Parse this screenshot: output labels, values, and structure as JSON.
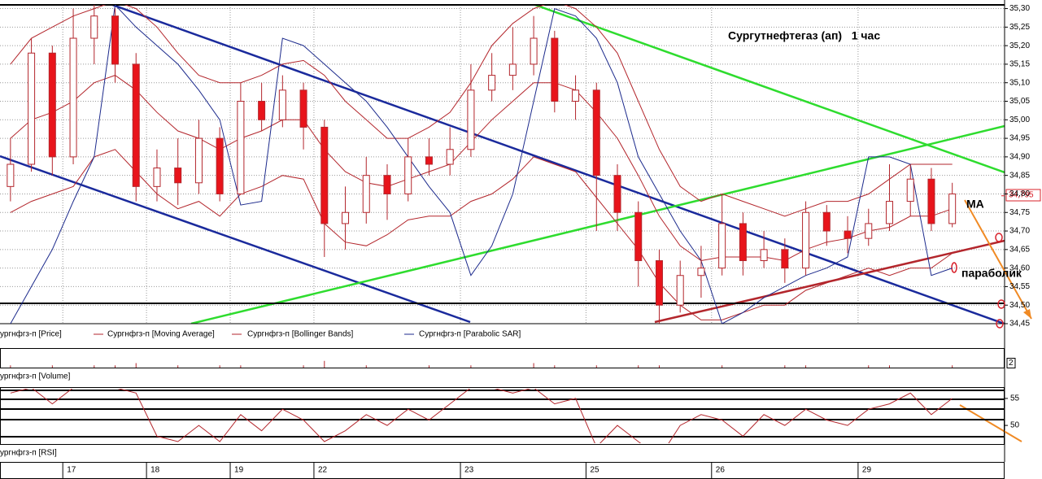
{
  "chart_data": [
    {
      "type": "candlestick",
      "title": "Сургутнефтегаз (ап)   1 час",
      "price_name": "ургнфгз-п [Price]",
      "annotations": [
        "MA",
        "параболик"
      ],
      "last_price": {
        "value": 34.795,
        "label": "34,795"
      },
      "categories": [
        null,
        null,
        null,
        "17",
        null,
        null,
        null,
        "18",
        null,
        null,
        null,
        "19",
        null,
        null,
        null,
        "22",
        null,
        null,
        null,
        null,
        null,
        null,
        "23",
        null,
        null,
        null,
        null,
        null,
        "25",
        null,
        null,
        null,
        null,
        null,
        "26",
        null,
        null,
        null,
        null,
        null,
        null,
        "29",
        null,
        null,
        null,
        null
      ],
      "open": [
        34.82,
        34.88,
        35.18,
        34.9,
        35.22,
        35.28,
        35.15,
        34.82,
        34.87,
        34.83,
        34.95,
        34.8,
        35.05,
        35.0,
        35.08,
        34.98,
        34.72,
        34.75,
        34.85,
        34.8,
        34.9,
        34.88,
        34.92,
        35.08,
        35.12,
        35.15,
        35.22,
        35.05,
        35.08,
        34.85,
        34.75,
        34.62,
        34.5,
        34.58,
        34.6,
        34.72,
        34.62,
        34.65,
        34.6,
        34.75,
        34.7,
        34.68,
        34.72,
        34.78,
        34.84,
        34.72
      ],
      "high": [
        34.95,
        35.22,
        35.2,
        35.3,
        35.31,
        35.3,
        35.18,
        34.92,
        34.95,
        35.0,
        34.98,
        35.1,
        35.1,
        35.12,
        35.1,
        35.0,
        34.82,
        34.9,
        34.88,
        34.95,
        34.95,
        34.98,
        35.15,
        35.18,
        35.25,
        35.28,
        35.24,
        35.12,
        35.1,
        34.88,
        34.78,
        34.65,
        34.62,
        34.66,
        34.8,
        34.75,
        34.7,
        34.68,
        34.78,
        34.77,
        34.74,
        34.76,
        34.88,
        34.88,
        34.87,
        34.83
      ],
      "low": [
        34.78,
        34.86,
        34.85,
        34.88,
        35.15,
        35.1,
        34.78,
        34.78,
        34.77,
        34.8,
        34.78,
        34.8,
        34.97,
        34.98,
        34.92,
        34.63,
        34.65,
        34.72,
        34.73,
        34.78,
        34.85,
        34.85,
        34.9,
        35.05,
        35.08,
        35.12,
        35.02,
        35.0,
        34.7,
        34.7,
        34.55,
        34.45,
        34.48,
        34.52,
        34.58,
        34.58,
        34.6,
        34.56,
        34.58,
        34.66,
        34.64,
        34.66,
        34.7,
        34.74,
        34.7,
        34.71
      ],
      "close": [
        34.88,
        35.18,
        34.9,
        35.22,
        35.28,
        35.15,
        34.82,
        34.87,
        34.83,
        34.95,
        34.8,
        35.05,
        35.0,
        35.08,
        34.98,
        34.72,
        34.75,
        34.85,
        34.8,
        34.9,
        34.88,
        34.92,
        35.08,
        35.12,
        35.15,
        35.22,
        35.05,
        35.08,
        34.85,
        34.75,
        34.62,
        34.5,
        34.58,
        34.6,
        34.72,
        34.62,
        34.65,
        34.6,
        34.75,
        34.7,
        34.68,
        34.72,
        34.78,
        34.84,
        34.72,
        34.8
      ],
      "up_color": "#ffffff",
      "down_color": "#e8141b",
      "wick_color": "#b3262c",
      "series": [
        {
          "name": "Сургнфгз-п [Moving Average]",
          "color": "#b3262c",
          "values": [
            34.95,
            35.0,
            35.02,
            35.05,
            35.1,
            35.12,
            35.08,
            35.02,
            34.97,
            34.95,
            34.92,
            34.95,
            34.97,
            35.0,
            35.0,
            34.92,
            34.86,
            34.83,
            34.82,
            34.84,
            34.86,
            34.88,
            34.94,
            35.0,
            35.05,
            35.1,
            35.1,
            35.08,
            35.02,
            34.95,
            34.85,
            34.74,
            34.66,
            34.62,
            34.63,
            34.63,
            34.63,
            34.62,
            34.65,
            34.67,
            34.68,
            34.7,
            34.71,
            34.74,
            34.74,
            34.76
          ]
        },
        {
          "name": "Сургнфгз-п [Bollinger Bands]",
          "color": "#b3262c",
          "upper": [
            35.15,
            35.22,
            35.25,
            35.28,
            35.3,
            35.32,
            35.3,
            35.25,
            35.18,
            35.12,
            35.1,
            35.1,
            35.12,
            35.15,
            35.16,
            35.12,
            35.05,
            35.0,
            34.95,
            34.95,
            34.98,
            35.02,
            35.1,
            35.2,
            35.26,
            35.3,
            35.32,
            35.3,
            35.25,
            35.18,
            35.05,
            34.92,
            34.82,
            34.78,
            34.8,
            34.78,
            34.76,
            34.74,
            34.76,
            34.78,
            34.78,
            34.8,
            34.84,
            34.88,
            34.88,
            34.88
          ],
          "lower": [
            34.75,
            34.78,
            34.8,
            34.82,
            34.9,
            34.92,
            34.86,
            34.8,
            34.76,
            34.78,
            34.74,
            34.8,
            34.82,
            34.85,
            34.84,
            34.72,
            34.67,
            34.66,
            34.69,
            34.73,
            34.74,
            34.74,
            34.78,
            34.8,
            34.84,
            34.9,
            34.88,
            34.86,
            34.79,
            34.72,
            34.65,
            34.56,
            34.5,
            34.46,
            34.46,
            34.48,
            34.5,
            34.5,
            34.54,
            34.56,
            34.58,
            34.6,
            34.58,
            34.6,
            34.6,
            34.64
          ]
        },
        {
          "name": "Сургнфгз-п [Parabolic SAR]",
          "color": "#1c2a8c",
          "values": [
            34.45,
            34.55,
            34.65,
            34.78,
            34.9,
            35.31,
            35.25,
            35.2,
            35.15,
            35.08,
            35.0,
            34.77,
            34.78,
            35.22,
            35.2,
            35.15,
            35.1,
            35.05,
            34.98,
            34.9,
            34.82,
            34.75,
            34.58,
            34.66,
            34.8,
            35.05,
            35.3,
            35.28,
            35.22,
            35.1,
            34.9,
            34.8,
            34.7,
            34.62,
            34.45,
            34.48,
            34.52,
            34.55,
            34.58,
            34.6,
            34.63,
            34.9,
            34.9,
            34.88,
            34.58,
            34.6
          ]
        }
      ],
      "ylim": [
        34.45,
        35.31
      ],
      "yticks": [
        {
          "value": 35.3,
          "label": "35,30"
        },
        {
          "value": 35.25,
          "label": "35,25"
        },
        {
          "value": 35.2,
          "label": "35,20"
        },
        {
          "value": 35.15,
          "label": "35,15"
        },
        {
          "value": 35.1,
          "label": "35,10"
        },
        {
          "value": 35.05,
          "label": "35,05"
        },
        {
          "value": 35.0,
          "label": "35,00"
        },
        {
          "value": 34.95,
          "label": "34,95"
        },
        {
          "value": 34.9,
          "label": "34,90"
        },
        {
          "value": 34.85,
          "label": "34,85"
        },
        {
          "value": 34.8,
          "label": "34,80"
        },
        {
          "value": 34.75,
          "label": "34,75"
        },
        {
          "value": 34.7,
          "label": "34,70"
        },
        {
          "value": 34.65,
          "label": "34,65"
        },
        {
          "value": 34.6,
          "label": "34,60"
        },
        {
          "value": 34.55,
          "label": "34,55"
        },
        {
          "value": 34.5,
          "label": "34,50"
        },
        {
          "value": 34.45,
          "label": "34,45"
        }
      ],
      "grid": true
    },
    {
      "type": "bar",
      "title": "ургнфгз-п [Volume]",
      "color": "#b3262c",
      "values": [
        1,
        0,
        1,
        0,
        1,
        1,
        2,
        0,
        1,
        0,
        1,
        1,
        0,
        0,
        1,
        3,
        0,
        1,
        0,
        0,
        1,
        0,
        1,
        0,
        0,
        2,
        1,
        0,
        1,
        0,
        1,
        1,
        0,
        0,
        1,
        0,
        0,
        1,
        1,
        0,
        0,
        1,
        1,
        0,
        0,
        1
      ],
      "ylim": [
        0,
        8
      ],
      "yticks": [
        2
      ]
    },
    {
      "type": "line",
      "title": "ургнфгз-п [RSI]",
      "color": "#b3262c",
      "values": [
        56,
        57,
        54,
        57,
        57,
        57,
        56,
        48,
        47,
        50,
        47,
        52,
        49,
        53,
        51,
        47,
        49,
        52,
        50,
        53,
        51,
        54,
        57,
        57,
        56,
        57,
        54,
        55,
        46,
        50,
        47,
        44,
        50,
        52,
        51,
        48,
        52,
        50,
        53,
        51,
        50,
        53,
        54,
        56,
        52,
        55
      ],
      "ylim": [
        46.7,
        56.8
      ],
      "yticks": [
        55,
        50
      ]
    }
  ]
}
